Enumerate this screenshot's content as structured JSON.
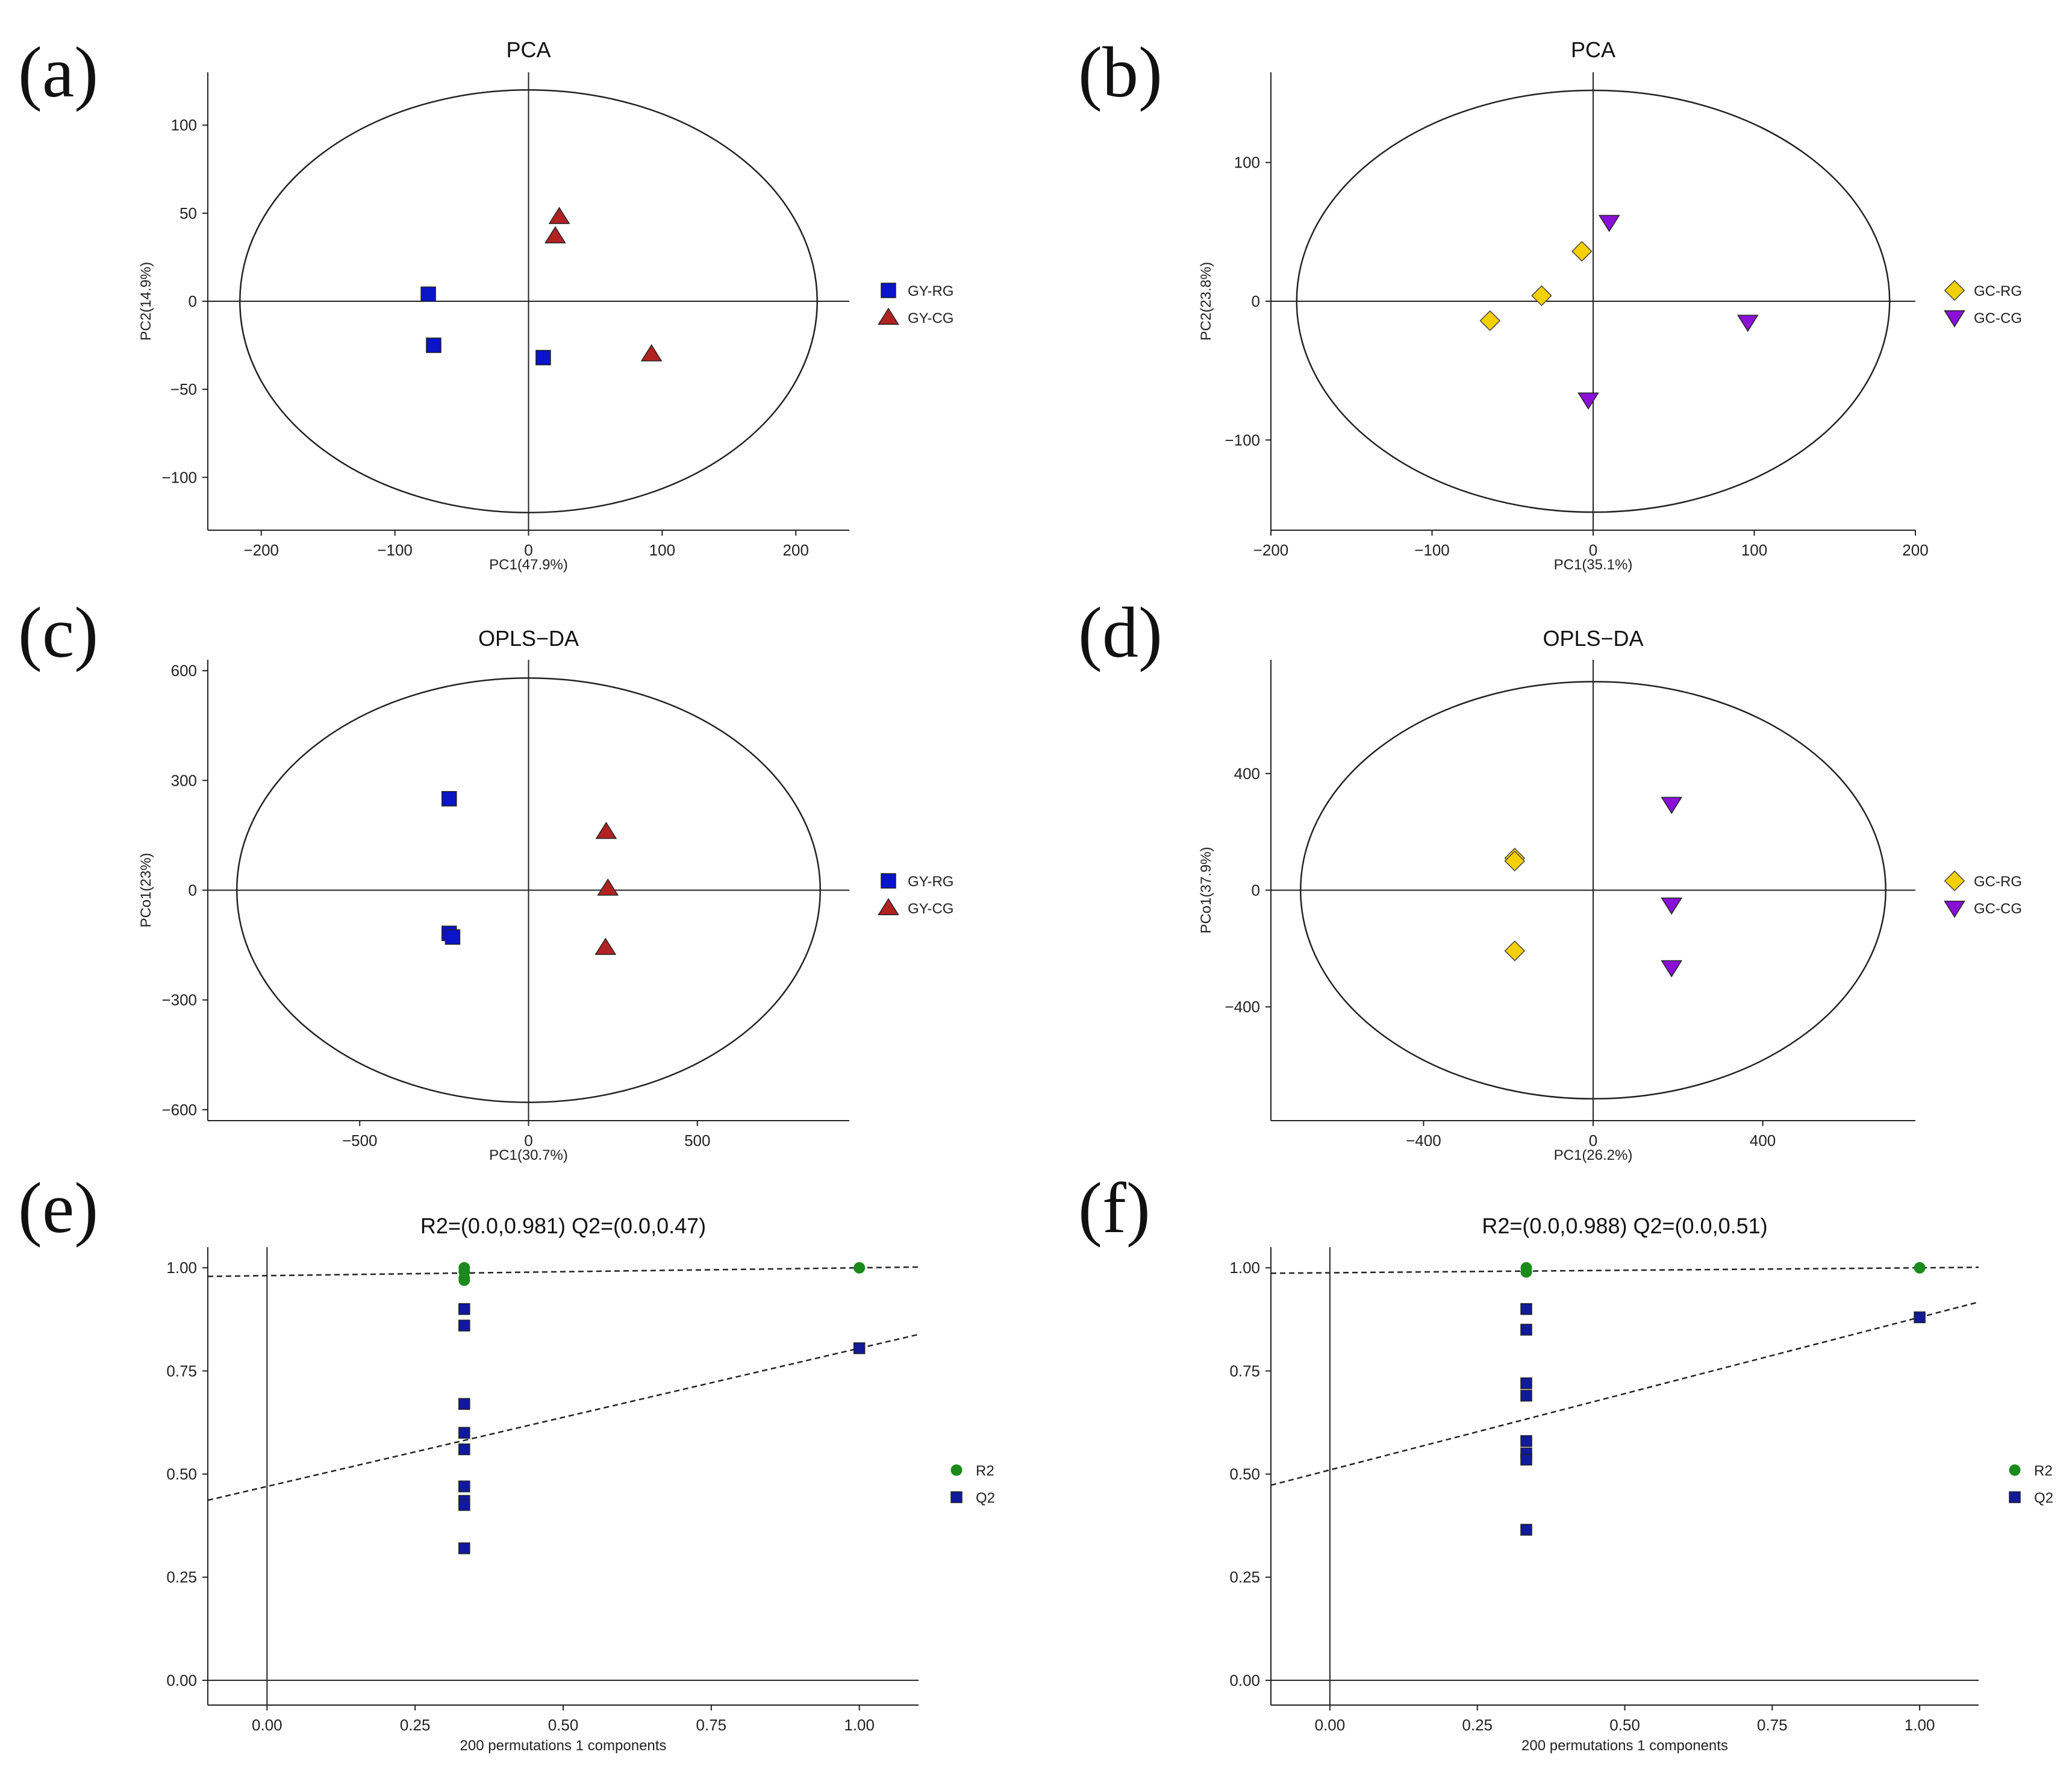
{
  "figure_labels": [
    "(a)",
    "(b)",
    "(c)",
    "(d)",
    "(e)",
    "(f)"
  ],
  "colors": {
    "GY-RG": "#0a14c8",
    "GY-CG": "#b22222",
    "GC-RG": "#f4d000",
    "GC-CG": "#8a10d8",
    "R2": "#1a8a1a",
    "Q2": "#101a9a"
  },
  "chart_data": [
    {
      "type": "scatter",
      "label": "(a)",
      "title": "PCA",
      "xlabel": "PC1(47.9%)",
      "ylabel": "PC2(14.9%)",
      "xlim": [
        -240,
        240
      ],
      "ylim": [
        -130,
        130
      ],
      "xticks": [
        -200,
        -100,
        0,
        100,
        200
      ],
      "yticks": [
        -100,
        -50,
        0,
        50,
        100
      ],
      "ellipse": {
        "rx": 216,
        "ry": 120
      },
      "series": [
        {
          "name": "GY-RG",
          "marker": "square",
          "points": [
            [
              -75,
              4
            ],
            [
              -71,
              -25
            ],
            [
              11,
              -32
            ]
          ]
        },
        {
          "name": "GY-CG",
          "marker": "triangle-up",
          "points": [
            [
              23,
              48
            ],
            [
              20,
              37
            ],
            [
              92,
              -30
            ]
          ]
        }
      ]
    },
    {
      "type": "scatter",
      "label": "(b)",
      "title": "PCA",
      "xlabel": "PC1(35.1%)",
      "ylabel": "PC2(23.8%)",
      "xlim": [
        -200,
        200
      ],
      "ylim": [
        -165,
        165
      ],
      "xticks": [
        -200,
        -100,
        0,
        100,
        200
      ],
      "yticks": [
        -100,
        0,
        100
      ],
      "ellipse": {
        "rx": 184,
        "ry": 152
      },
      "series": [
        {
          "name": "GC-RG",
          "marker": "diamond",
          "points": [
            [
              -64,
              -14
            ],
            [
              -32,
              4
            ],
            [
              -7,
              36
            ]
          ]
        },
        {
          "name": "GC-CG",
          "marker": "triangle-down",
          "points": [
            [
              10,
              57
            ],
            [
              96,
              -15
            ],
            [
              -3,
              -71
            ]
          ]
        }
      ]
    },
    {
      "type": "scatter",
      "label": "(c)",
      "title": "OPLS−DA",
      "xlabel": "PC1(30.7%)",
      "ylabel": "PCo1(23%)",
      "xlim": [
        -950,
        950
      ],
      "ylim": [
        -630,
        630
      ],
      "xticks": [
        -500,
        0,
        500
      ],
      "yticks": [
        -600,
        -300,
        0,
        300,
        600
      ],
      "ellipse": {
        "rx": 864,
        "ry": 580
      },
      "series": [
        {
          "name": "GY-RG",
          "marker": "square",
          "points": [
            [
              -235,
              250
            ],
            [
              -235,
              -118
            ],
            [
              -225,
              -128
            ]
          ]
        },
        {
          "name": "GY-CG",
          "marker": "triangle-up",
          "points": [
            [
              230,
              160
            ],
            [
              235,
              5
            ],
            [
              228,
              -157
            ]
          ]
        }
      ]
    },
    {
      "type": "scatter",
      "label": "(d)",
      "title": "OPLS−DA",
      "xlabel": "PC1(26.2%)",
      "ylabel": "PCo1(37.9%)",
      "xlim": [
        -760,
        760
      ],
      "ylim": [
        -790,
        790
      ],
      "xticks": [
        -400,
        0,
        400
      ],
      "yticks": [
        -400,
        0,
        400
      ],
      "ellipse": {
        "rx": 690,
        "ry": 715
      },
      "series": [
        {
          "name": "GC-RG",
          "marker": "diamond",
          "points": [
            [
              -185,
              110
            ],
            [
              -185,
              100
            ],
            [
              -185,
              -208
            ]
          ]
        },
        {
          "name": "GC-CG",
          "marker": "triangle-down",
          "points": [
            [
              185,
              295
            ],
            [
              185,
              -50
            ],
            [
              185,
              -265
            ]
          ]
        }
      ]
    },
    {
      "type": "scatter",
      "label": "(e)",
      "title": "R2=(0.0,0.981)   Q2=(0.0,0.47)",
      "xlabel": "200 permutations 1 components",
      "ylabel": "",
      "xlim": [
        -0.1,
        1.1
      ],
      "ylim": [
        -0.06,
        1.05
      ],
      "xticks": [
        0.0,
        0.25,
        0.5,
        0.75,
        1.0
      ],
      "yticks": [
        0.0,
        0.25,
        0.5,
        0.75,
        1.0
      ],
      "tick_decimals": 2,
      "lines": [
        {
          "name": "R2",
          "intercept": 0.981,
          "slope": 0.019
        },
        {
          "name": "Q2",
          "intercept": 0.47,
          "slope": 0.335
        }
      ],
      "series": [
        {
          "name": "R2",
          "marker": "circle",
          "points": [
            [
              0.333,
              1.0
            ],
            [
              0.333,
              0.99
            ],
            [
              0.333,
              0.975
            ],
            [
              0.333,
              0.97
            ],
            [
              1.0,
              1.0
            ]
          ]
        },
        {
          "name": "Q2",
          "marker": "square",
          "points": [
            [
              0.333,
              0.9
            ],
            [
              0.333,
              0.86
            ],
            [
              0.333,
              0.67
            ],
            [
              0.333,
              0.6
            ],
            [
              0.333,
              0.56
            ],
            [
              0.333,
              0.47
            ],
            [
              0.333,
              0.435
            ],
            [
              0.333,
              0.425
            ],
            [
              0.333,
              0.32
            ],
            [
              1.0,
              0.805
            ]
          ]
        }
      ]
    },
    {
      "type": "scatter",
      "label": "(f)",
      "title": "R2=(0.0,0.988)   Q2=(0.0,0.51)",
      "xlabel": "200 permutations 1 components",
      "ylabel": "",
      "xlim": [
        -0.1,
        1.1
      ],
      "ylim": [
        -0.06,
        1.05
      ],
      "xticks": [
        0.0,
        0.25,
        0.5,
        0.75,
        1.0
      ],
      "yticks": [
        0.0,
        0.25,
        0.5,
        0.75,
        1.0
      ],
      "tick_decimals": 2,
      "lines": [
        {
          "name": "R2",
          "intercept": 0.988,
          "slope": 0.012
        },
        {
          "name": "Q2",
          "intercept": 0.51,
          "slope": 0.37
        }
      ],
      "series": [
        {
          "name": "R2",
          "marker": "circle",
          "points": [
            [
              0.333,
              1.0
            ],
            [
              0.333,
              0.99
            ],
            [
              1.0,
              1.0
            ]
          ]
        },
        {
          "name": "Q2",
          "marker": "square",
          "points": [
            [
              0.333,
              0.9
            ],
            [
              0.333,
              0.85
            ],
            [
              0.333,
              0.72
            ],
            [
              0.333,
              0.69
            ],
            [
              0.333,
              0.58
            ],
            [
              0.333,
              0.55
            ],
            [
              0.333,
              0.535
            ],
            [
              0.333,
              0.365
            ],
            [
              1.0,
              0.88
            ]
          ]
        }
      ]
    }
  ]
}
